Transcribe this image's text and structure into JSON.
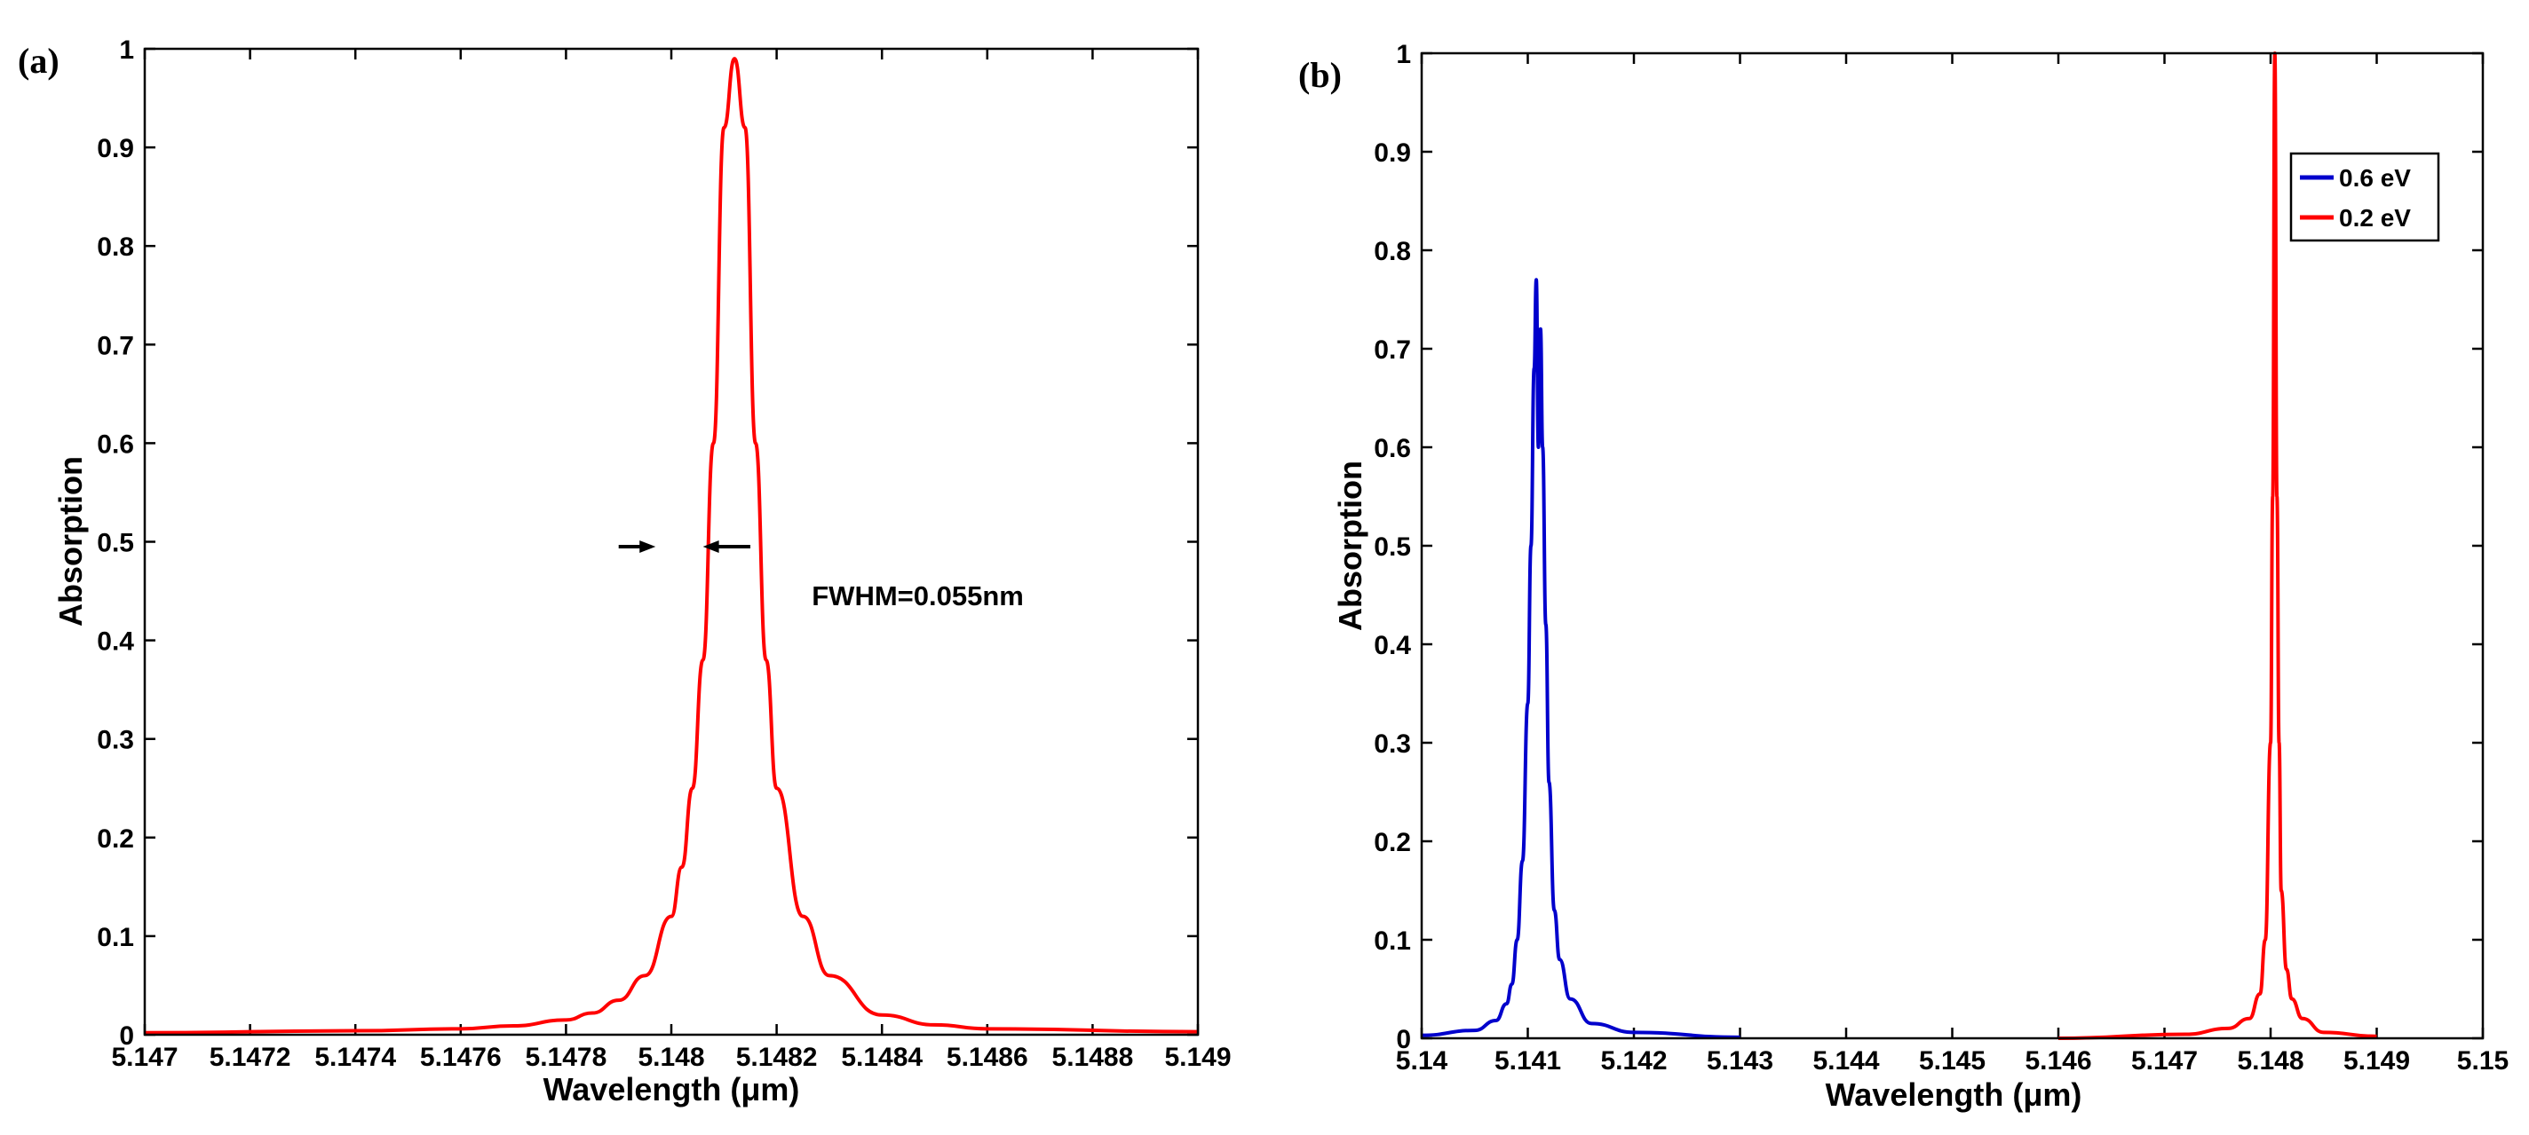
{
  "chart_data": [
    {
      "type": "line",
      "panel_label": "(a)",
      "xlabel": "Wavelength (μm)",
      "ylabel": "Absorption",
      "xlim": [
        5.147,
        5.149
      ],
      "ylim": [
        0,
        1
      ],
      "xticks": [
        5.147,
        5.1472,
        5.1474,
        5.1476,
        5.1478,
        5.148,
        5.1482,
        5.1484,
        5.1486,
        5.1488,
        5.149
      ],
      "xtick_labels": [
        "5.147",
        "5.1472",
        "5.1474",
        "5.1476",
        "5.1478",
        "5.148",
        "5.1482",
        "5.1484",
        "5.1486",
        "5.1488",
        "5.149"
      ],
      "yticks": [
        0,
        0.1,
        0.2,
        0.3,
        0.4,
        0.5,
        0.6,
        0.7,
        0.8,
        0.9,
        1
      ],
      "ytick_labels": [
        "0",
        "0.1",
        "0.2",
        "0.3",
        "0.4",
        "0.5",
        "0.6",
        "0.7",
        "0.8",
        "0.9",
        "1"
      ],
      "series": [
        {
          "name": "absorption",
          "color": "#ff0000",
          "x": [
            5.147,
            5.1474,
            5.1476,
            5.1477,
            5.1478,
            5.14785,
            5.1479,
            5.14795,
            5.148,
            5.14802,
            5.14804,
            5.14806,
            5.14808,
            5.1481,
            5.14812,
            5.14814,
            5.14816,
            5.14818,
            5.1482,
            5.14825,
            5.1483,
            5.1484,
            5.1485,
            5.1486,
            5.149
          ],
          "y": [
            0.002,
            0.004,
            0.006,
            0.009,
            0.015,
            0.022,
            0.035,
            0.06,
            0.12,
            0.17,
            0.25,
            0.38,
            0.6,
            0.92,
            0.99,
            0.92,
            0.6,
            0.38,
            0.25,
            0.12,
            0.06,
            0.02,
            0.01,
            0.006,
            0.003
          ]
        }
      ],
      "annotation": {
        "text": "FWHM=0.055nm",
        "x": 5.14825,
        "y": 0.45,
        "arrow_y": 0.495,
        "arrow_left_tip": 5.14797,
        "arrow_right_tip": 5.14806,
        "arrow_left_tail": 5.1479,
        "arrow_right_tail": 5.14815
      }
    },
    {
      "type": "line",
      "panel_label": "(b)",
      "xlabel": "Wavelength (μm)",
      "ylabel": "Absorption",
      "xlim": [
        5.14,
        5.15
      ],
      "ylim": [
        0,
        1
      ],
      "xticks": [
        5.14,
        5.141,
        5.142,
        5.143,
        5.144,
        5.145,
        5.146,
        5.147,
        5.148,
        5.149,
        5.15
      ],
      "xtick_labels": [
        "5.14",
        "5.141",
        "5.142",
        "5.143",
        "5.144",
        "5.145",
        "5.146",
        "5.147",
        "5.148",
        "5.149",
        "5.15"
      ],
      "yticks": [
        0,
        0.1,
        0.2,
        0.3,
        0.4,
        0.5,
        0.6,
        0.7,
        0.8,
        0.9,
        1
      ],
      "ytick_labels": [
        "0",
        "0.1",
        "0.2",
        "0.3",
        "0.4",
        "0.5",
        "0.6",
        "0.7",
        "0.8",
        "0.9",
        "1"
      ],
      "legend": {
        "placement": "top-right"
      },
      "series": [
        {
          "name": "0.6 eV",
          "color": "#0000cc",
          "x": [
            5.14,
            5.1405,
            5.1407,
            5.1408,
            5.14085,
            5.1409,
            5.14095,
            5.141,
            5.14103,
            5.14106,
            5.14108,
            5.1411,
            5.14112,
            5.14114,
            5.14117,
            5.1412,
            5.14125,
            5.1413,
            5.1414,
            5.1416,
            5.142,
            5.143
          ],
          "y": [
            0.003,
            0.008,
            0.018,
            0.035,
            0.055,
            0.1,
            0.18,
            0.34,
            0.5,
            0.68,
            0.77,
            0.6,
            0.72,
            0.6,
            0.42,
            0.26,
            0.13,
            0.08,
            0.04,
            0.015,
            0.006,
            0.001
          ]
        },
        {
          "name": "0.2 eV",
          "color": "#ff0000",
          "x": [
            5.146,
            5.1472,
            5.1476,
            5.1478,
            5.1479,
            5.14795,
            5.148,
            5.14802,
            5.14804,
            5.14806,
            5.14808,
            5.1481,
            5.14815,
            5.1482,
            5.1483,
            5.1485,
            5.149
          ],
          "y": [
            0.0,
            0.004,
            0.01,
            0.02,
            0.045,
            0.1,
            0.3,
            0.55,
            1.0,
            0.55,
            0.3,
            0.15,
            0.07,
            0.04,
            0.02,
            0.006,
            0.002
          ]
        }
      ]
    }
  ]
}
